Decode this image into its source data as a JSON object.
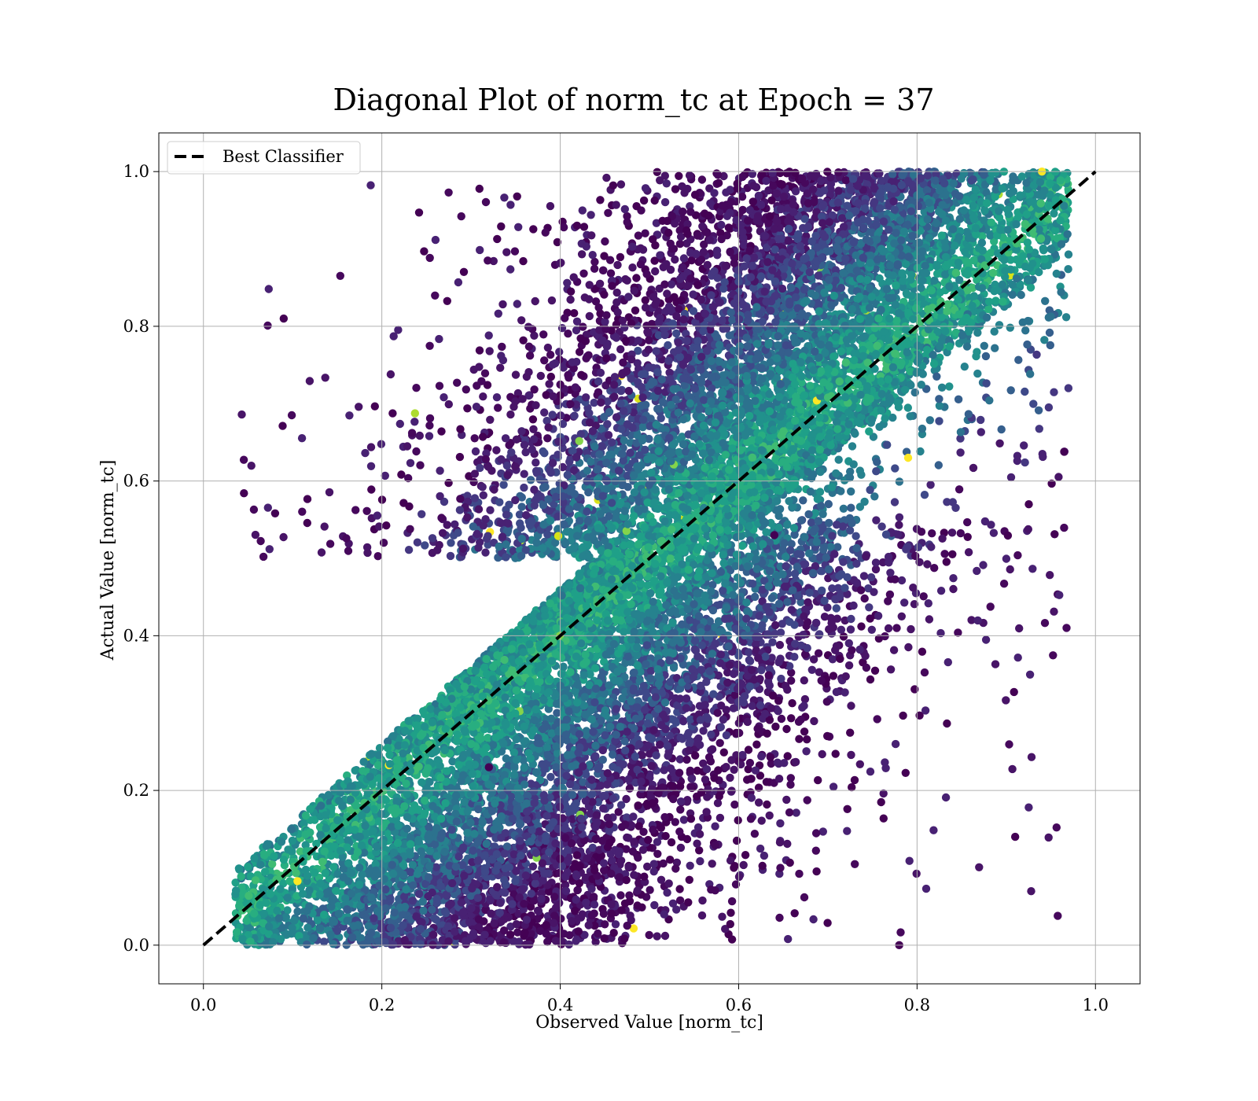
{
  "chart_data": {
    "type": "scatter",
    "title": "Diagonal Plot of norm_tc at Epoch = 37",
    "xlabel": "Observed Value [norm_tc]",
    "ylabel": "Actual Value [norm_tc]",
    "xlim": [
      -0.05,
      1.05
    ],
    "ylim": [
      -0.05,
      1.05
    ],
    "xticks": [
      "0.0",
      "0.2",
      "0.4",
      "0.6",
      "0.8",
      "1.0"
    ],
    "yticks": [
      "0.0",
      "0.2",
      "0.4",
      "0.6",
      "0.8",
      "1.0"
    ],
    "xtick_values": [
      0.0,
      0.2,
      0.4,
      0.6,
      0.8,
      1.0
    ],
    "ytick_values": [
      0.0,
      0.2,
      0.4,
      0.6,
      0.8,
      1.0
    ],
    "grid": true,
    "colormap": "viridis",
    "legend": {
      "placement": "upper-left",
      "entries": [
        "Best Classifier"
      ]
    },
    "reference_line": {
      "name": "Best Classifier",
      "x": [
        0.0,
        1.0
      ],
      "y": [
        0.0,
        1.0
      ],
      "style": "dashed",
      "color": "#000000"
    },
    "scatter_description": "dense point cloud of observed vs actual norm_tc values, x from about 0.03 to 0.97, y from 0.0 to 1.0",
    "sample_points": [
      {
        "x": 0.94,
        "y": 1.0
      },
      {
        "x": 0.79,
        "y": 0.63
      },
      {
        "x": 0.91,
        "y": 0.14
      },
      {
        "x": 0.09,
        "y": 0.81
      },
      {
        "x": 0.32,
        "y": 0.23
      },
      {
        "x": 0.64,
        "y": 0.53
      },
      {
        "x": 0.78,
        "y": 0.0
      }
    ]
  }
}
